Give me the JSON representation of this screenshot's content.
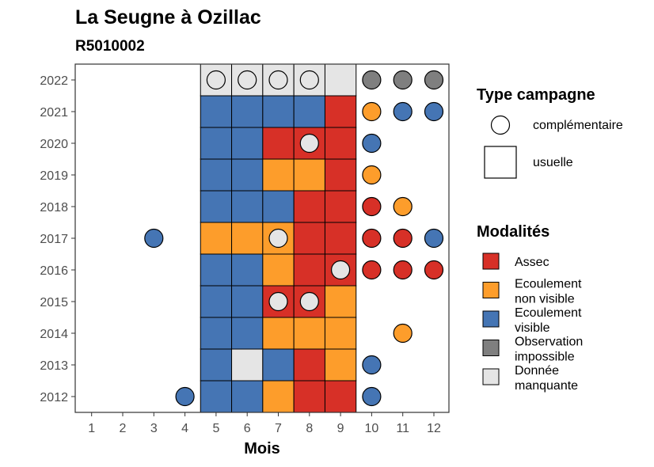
{
  "chart_data": {
    "type": "heatmap",
    "title": "La Seugne à Ozillac",
    "subtitle": "R5010002",
    "xlabel": "Mois",
    "ylabel": "",
    "x_ticks": [
      "1",
      "2",
      "3",
      "4",
      "5",
      "6",
      "7",
      "8",
      "9",
      "10",
      "11",
      "12"
    ],
    "y_ticks": [
      "2012",
      "2013",
      "2014",
      "2015",
      "2016",
      "2017",
      "2018",
      "2019",
      "2020",
      "2021",
      "2022"
    ],
    "grid": false,
    "legend_position": "right",
    "legends": [
      {
        "title": "Type campagne",
        "entries": [
          {
            "key": "complementaire",
            "label": "complémentaire",
            "shape": "circle"
          },
          {
            "key": "usuelle",
            "label": "usuelle",
            "shape": "square"
          }
        ]
      },
      {
        "title": "Modalités",
        "entries": [
          {
            "key": "assec",
            "label_lines": [
              "Assec"
            ],
            "color": "#d73027"
          },
          {
            "key": "ecoulement_non_visible",
            "label_lines": [
              "Ecoulement",
              "non visible"
            ],
            "color": "#fd9d2b"
          },
          {
            "key": "ecoulement_visible",
            "label_lines": [
              "Ecoulement",
              "visible"
            ],
            "color": "#4575b4"
          },
          {
            "key": "observation_impossible",
            "label_lines": [
              "Observation",
              "impossible"
            ],
            "color": "#7f7f7f"
          },
          {
            "key": "donnee_manquante",
            "label_lines": [
              "Donnée",
              "manquante"
            ],
            "color": "#e5e5e5"
          }
        ]
      }
    ],
    "usuelle": [
      {
        "year": 2012,
        "months": [
          "ecoulement_visible",
          "ecoulement_visible",
          "ecoulement_non_visible",
          "assec",
          "assec"
        ]
      },
      {
        "year": 2013,
        "months": [
          "ecoulement_visible",
          "donnee_manquante",
          "ecoulement_visible",
          "assec",
          "ecoulement_non_visible"
        ]
      },
      {
        "year": 2014,
        "months": [
          "ecoulement_visible",
          "ecoulement_visible",
          "ecoulement_non_visible",
          "ecoulement_non_visible",
          "ecoulement_non_visible"
        ]
      },
      {
        "year": 2015,
        "months": [
          "ecoulement_visible",
          "ecoulement_visible",
          "assec",
          "assec",
          "ecoulement_non_visible"
        ]
      },
      {
        "year": 2016,
        "months": [
          "ecoulement_visible",
          "ecoulement_visible",
          "ecoulement_non_visible",
          "assec",
          "assec"
        ]
      },
      {
        "year": 2017,
        "months": [
          "ecoulement_non_visible",
          "ecoulement_non_visible",
          "ecoulement_non_visible",
          "assec",
          "assec"
        ]
      },
      {
        "year": 2018,
        "months": [
          "ecoulement_visible",
          "ecoulement_visible",
          "ecoulement_visible",
          "assec",
          "assec"
        ]
      },
      {
        "year": 2019,
        "months": [
          "ecoulement_visible",
          "ecoulement_visible",
          "ecoulement_non_visible",
          "ecoulement_non_visible",
          "assec"
        ]
      },
      {
        "year": 2020,
        "months": [
          "ecoulement_visible",
          "ecoulement_visible",
          "assec",
          "assec",
          "assec"
        ]
      },
      {
        "year": 2021,
        "months": [
          "ecoulement_visible",
          "ecoulement_visible",
          "ecoulement_visible",
          "ecoulement_visible",
          "assec"
        ]
      },
      {
        "year": 2022,
        "months": [
          "donnee_manquante",
          "donnee_manquante",
          "donnee_manquante",
          "donnee_manquante",
          "donnee_manquante"
        ]
      }
    ],
    "usuelle_first_month": 5,
    "complementaire": [
      {
        "year": 2012,
        "month": 4,
        "value": "ecoulement_visible"
      },
      {
        "year": 2012,
        "month": 10,
        "value": "ecoulement_visible"
      },
      {
        "year": 2013,
        "month": 10,
        "value": "ecoulement_visible"
      },
      {
        "year": 2014,
        "month": 11,
        "value": "ecoulement_non_visible"
      },
      {
        "year": 2015,
        "month": 7,
        "value": "donnee_manquante"
      },
      {
        "year": 2015,
        "month": 8,
        "value": "donnee_manquante"
      },
      {
        "year": 2016,
        "month": 9,
        "value": "donnee_manquante"
      },
      {
        "year": 2016,
        "month": 10,
        "value": "assec"
      },
      {
        "year": 2016,
        "month": 11,
        "value": "assec"
      },
      {
        "year": 2016,
        "month": 12,
        "value": "assec"
      },
      {
        "year": 2017,
        "month": 3,
        "value": "ecoulement_visible"
      },
      {
        "year": 2017,
        "month": 7,
        "value": "donnee_manquante"
      },
      {
        "year": 2017,
        "month": 10,
        "value": "assec"
      },
      {
        "year": 2017,
        "month": 11,
        "value": "assec"
      },
      {
        "year": 2017,
        "month": 12,
        "value": "ecoulement_visible"
      },
      {
        "year": 2018,
        "month": 10,
        "value": "assec"
      },
      {
        "year": 2018,
        "month": 11,
        "value": "ecoulement_non_visible"
      },
      {
        "year": 2019,
        "month": 10,
        "value": "ecoulement_non_visible"
      },
      {
        "year": 2020,
        "month": 8,
        "value": "donnee_manquante"
      },
      {
        "year": 2020,
        "month": 10,
        "value": "ecoulement_visible"
      },
      {
        "year": 2021,
        "month": 10,
        "value": "ecoulement_non_visible"
      },
      {
        "year": 2021,
        "month": 11,
        "value": "ecoulement_visible"
      },
      {
        "year": 2021,
        "month": 12,
        "value": "ecoulement_visible"
      },
      {
        "year": 2022,
        "month": 5,
        "value": "donnee_manquante"
      },
      {
        "year": 2022,
        "month": 6,
        "value": "donnee_manquante"
      },
      {
        "year": 2022,
        "month": 7,
        "value": "donnee_manquante"
      },
      {
        "year": 2022,
        "month": 8,
        "value": "donnee_manquante"
      },
      {
        "year": 2022,
        "month": 10,
        "value": "observation_impossible"
      },
      {
        "year": 2022,
        "month": 11,
        "value": "observation_impossible"
      },
      {
        "year": 2022,
        "month": 12,
        "value": "observation_impossible"
      }
    ]
  }
}
